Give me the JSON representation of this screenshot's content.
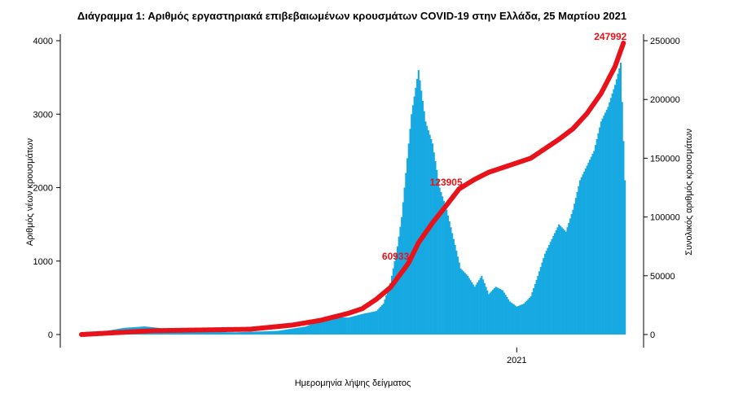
{
  "chart_data": {
    "type": "bar",
    "title": "Διάγραμμα 1: Αριθμός εργαστηριακά επιβεβαιωμένων κρουσμάτων COVID-19 στην Ελλάδα, 25 Μαρτίου 2021",
    "xlabel": "Ημερομηνία λήψης δείγματος",
    "ylabel_left": "Αριθμός νέων κρουσμάτων",
    "ylabel_right": "Συνολικός αριθμός κρουσμάτων",
    "ylim_left": [
      0,
      4000
    ],
    "ylim_right": [
      0,
      250000
    ],
    "yticks_left": [
      "0",
      "1000",
      "2000",
      "3000",
      "4000"
    ],
    "yticks_right": [
      "0",
      "50000",
      "100000",
      "150000",
      "200000",
      "250000"
    ],
    "x_tick_label": "2021",
    "x_tick_day": 310,
    "n_days": 388,
    "bar_color": "#17a9e1",
    "line_color": "#e8121a",
    "annotations": [
      {
        "text": "60933",
        "day": 233,
        "value": 60933
      },
      {
        "text": "123905",
        "day": 269,
        "value": 123905
      },
      {
        "text": "247992",
        "day": 386,
        "value": 247992
      }
    ],
    "series": [
      {
        "type": "bar",
        "axis": "left",
        "breakpoints": [
          [
            0,
            10
          ],
          [
            15,
            40
          ],
          [
            30,
            90
          ],
          [
            45,
            110
          ],
          [
            55,
            90
          ],
          [
            70,
            40
          ],
          [
            90,
            35
          ],
          [
            110,
            30
          ],
          [
            125,
            40
          ],
          [
            140,
            50
          ],
          [
            150,
            80
          ],
          [
            160,
            110
          ],
          [
            170,
            200
          ],
          [
            180,
            240
          ],
          [
            190,
            230
          ],
          [
            200,
            280
          ],
          [
            210,
            320
          ],
          [
            215,
            420
          ],
          [
            220,
            700
          ],
          [
            225,
            1200
          ],
          [
            228,
            1600
          ],
          [
            232,
            2400
          ],
          [
            235,
            3000
          ],
          [
            240,
            3600
          ],
          [
            245,
            2900
          ],
          [
            250,
            2600
          ],
          [
            255,
            2000
          ],
          [
            260,
            1700
          ],
          [
            265,
            1300
          ],
          [
            270,
            900
          ],
          [
            275,
            800
          ],
          [
            280,
            650
          ],
          [
            285,
            800
          ],
          [
            290,
            550
          ],
          [
            295,
            650
          ],
          [
            300,
            600
          ],
          [
            305,
            450
          ],
          [
            310,
            380
          ],
          [
            315,
            420
          ],
          [
            320,
            520
          ],
          [
            325,
            800
          ],
          [
            330,
            1100
          ],
          [
            335,
            1300
          ],
          [
            340,
            1500
          ],
          [
            345,
            1400
          ],
          [
            350,
            1700
          ],
          [
            355,
            2100
          ],
          [
            360,
            2300
          ],
          [
            365,
            2500
          ],
          [
            370,
            2900
          ],
          [
            375,
            3100
          ],
          [
            380,
            3400
          ],
          [
            384,
            3700
          ],
          [
            387,
            2100
          ]
        ]
      },
      {
        "type": "line",
        "axis": "right",
        "breakpoints": [
          [
            0,
            0
          ],
          [
            50,
            3200
          ],
          [
            120,
            4500
          ],
          [
            150,
            8000
          ],
          [
            170,
            12000
          ],
          [
            190,
            18000
          ],
          [
            200,
            22000
          ],
          [
            210,
            30000
          ],
          [
            215,
            35000
          ],
          [
            220,
            40000
          ],
          [
            225,
            48000
          ],
          [
            230,
            56000
          ],
          [
            233,
            60933
          ],
          [
            240,
            78000
          ],
          [
            250,
            95000
          ],
          [
            260,
            110000
          ],
          [
            269,
            123905
          ],
          [
            280,
            132000
          ],
          [
            290,
            138000
          ],
          [
            300,
            142000
          ],
          [
            310,
            146000
          ],
          [
            320,
            150000
          ],
          [
            330,
            158000
          ],
          [
            340,
            166000
          ],
          [
            350,
            175000
          ],
          [
            360,
            188000
          ],
          [
            370,
            205000
          ],
          [
            380,
            228000
          ],
          [
            386,
            247992
          ]
        ]
      }
    ]
  }
}
